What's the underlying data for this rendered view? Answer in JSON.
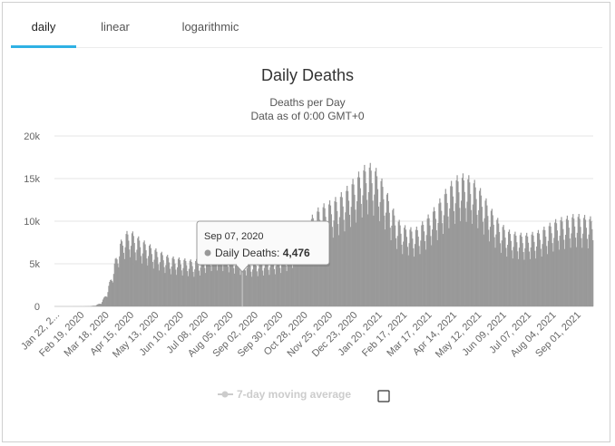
{
  "tabs": [
    {
      "label": "daily",
      "active": true
    },
    {
      "label": "linear",
      "active": false
    },
    {
      "label": "logarithmic",
      "active": false
    }
  ],
  "chart_data": {
    "type": "bar",
    "title": "Daily Deaths",
    "subtitle_line1": "Deaths per Day",
    "subtitle_line2": "Data as of 0:00 GMT+0",
    "ylim": [
      0,
      20000
    ],
    "y_ticks": [
      0,
      5000,
      10000,
      15000,
      20000
    ],
    "y_tick_labels": [
      "0",
      "5k",
      "10k",
      "15k",
      "20k"
    ],
    "x_tick_labels": [
      "Jan 22, 2...",
      "Feb 19, 2020",
      "Mar 18, 2020",
      "Apr 15, 2020",
      "May 13, 2020",
      "Jun 10, 2020",
      "Jul 08, 2020",
      "Aug 05, 2020",
      "Sep 02, 2020",
      "Sep 30, 2020",
      "Oct 28, 2020",
      "Nov 25, 2020",
      "Dec 23, 2020",
      "Jan 20, 2021",
      "Feb 17, 2021",
      "Mar 17, 2021",
      "Apr 14, 2021",
      "May 12, 2021",
      "Jun 09, 2021",
      "Jul 07, 2021",
      "Aug 04, 2021",
      "Sep 01, 2021"
    ],
    "series_name": "Daily Deaths",
    "bar_color": "#999999",
    "grid": true,
    "weekly_values": [
      0,
      0,
      0,
      0,
      2,
      5,
      20,
      100,
      400,
      1500,
      3800,
      6200,
      7500,
      7800,
      7300,
      6800,
      6500,
      6000,
      5700,
      5300,
      5100,
      5000,
      4900,
      4800,
      4700,
      4900,
      5300,
      5600,
      5700,
      5600,
      5400,
      5200,
      5000,
      4900,
      4700,
      4800,
      4900,
      5000,
      5100,
      5300,
      5600,
      6100,
      6800,
      7700,
      8900,
      9800,
      10300,
      10600,
      10900,
      11300,
      11900,
      12600,
      13300,
      14100,
      14600,
      14400,
      13500,
      12200,
      10500,
      9100,
      8300,
      8100,
      7900,
      8300,
      9000,
      9700,
      10500,
      11500,
      12400,
      13100,
      13500,
      13400,
      13100,
      12400,
      11400,
      10300,
      9300,
      8500,
      7900,
      7600,
      7500,
      7400,
      7500,
      7600,
      7900,
      8300,
      8700,
      9000,
      9100,
      9300,
      9400,
      9300,
      9200,
      9000
    ],
    "tooltip": {
      "date": "Sep 07, 2020",
      "label": "Daily Deaths:",
      "value": "4,476",
      "index": 32
    }
  },
  "legend": {
    "moving_average_label": "7-day moving average",
    "moving_average_color": "#cccccc"
  }
}
